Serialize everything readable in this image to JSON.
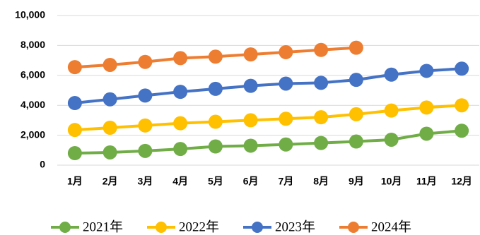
{
  "chart_data": {
    "type": "line",
    "categories": [
      "1月",
      "2月",
      "3月",
      "4月",
      "5月",
      "6月",
      "7月",
      "8月",
      "9月",
      "10月",
      "11月",
      "12月"
    ],
    "series": [
      {
        "name": "2021年",
        "color": "#70ad47",
        "values": [
          800,
          850,
          950,
          1080,
          1250,
          1300,
          1380,
          1480,
          1580,
          1700,
          2100,
          2300
        ]
      },
      {
        "name": "2022年",
        "color": "#ffc000",
        "values": [
          2350,
          2500,
          2650,
          2800,
          2900,
          3000,
          3100,
          3200,
          3400,
          3650,
          3850,
          4000
        ]
      },
      {
        "name": "2023年",
        "color": "#4472c4",
        "values": [
          4150,
          4400,
          4650,
          4900,
          5100,
          5300,
          5450,
          5500,
          5700,
          6050,
          6300,
          6450
        ]
      },
      {
        "name": "2024年",
        "color": "#ed7d31",
        "values": [
          6550,
          6700,
          6900,
          7150,
          7250,
          7400,
          7550,
          7700,
          7850,
          null,
          null,
          null
        ]
      }
    ],
    "ylim": [
      0,
      10000
    ],
    "yticks": [
      0,
      {
        "value": 2000,
        "label": "2,000"
      },
      {
        "value": 4000,
        "label": "4,000"
      },
      {
        "value": 6000,
        "label": "6,000"
      },
      {
        "value": 8000,
        "label": "8,000"
      },
      {
        "value": 10000,
        "label": "10,000"
      }
    ],
    "grid": true
  }
}
